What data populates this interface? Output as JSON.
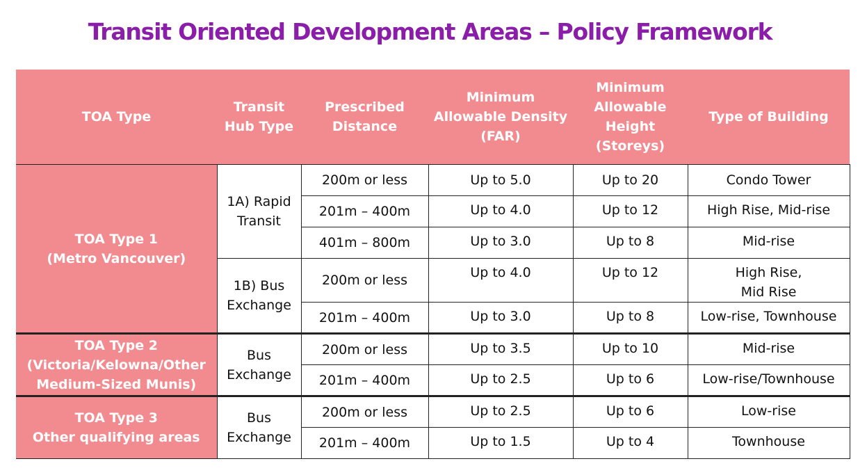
{
  "title": "Transit Oriented Development Areas – Policy Framework",
  "colors": {
    "title": "#8b1ea8",
    "header_bg": "#f28b8f",
    "header_text": "#ffffff"
  },
  "headers": {
    "toa_type": "TOA Type",
    "hub_type": [
      "Transit",
      "Hub Type"
    ],
    "distance": [
      "Prescribed",
      "Distance"
    ],
    "density": [
      "Minimum",
      "Allowable Density",
      "(FAR)"
    ],
    "height": [
      "Minimum",
      "Allowable",
      "Height",
      "(Storeys)"
    ],
    "building": "Type of Building"
  },
  "groups": [
    {
      "toa": [
        "TOA Type 1",
        "(Metro Vancouver)"
      ],
      "hubs": [
        {
          "name": [
            "1A) Rapid",
            "Transit"
          ],
          "rows": [
            {
              "distance": "200m or less",
              "density": "Up to 5.0",
              "height": "Up to 20",
              "building": [
                "Condo Tower"
              ]
            },
            {
              "distance": "201m – 400m",
              "density": "Up to 4.0",
              "height": "Up to 12",
              "building": [
                "High Rise, Mid-rise"
              ]
            },
            {
              "distance": "401m – 800m",
              "density": "Up to 3.0",
              "height": "Up to 8",
              "building": [
                "Mid-rise"
              ]
            }
          ]
        },
        {
          "name": [
            "1B) Bus",
            "Exchange"
          ],
          "rows": [
            {
              "distance": "200m or less",
              "density": "Up to 4.0",
              "height": "Up to 12",
              "building": [
                "High Rise,",
                "Mid Rise"
              ]
            },
            {
              "distance": "201m – 400m",
              "density": "Up to 3.0",
              "height": "Up to 8",
              "building": [
                "Low-rise, Townhouse"
              ]
            }
          ]
        }
      ]
    },
    {
      "toa": [
        "TOA Type 2",
        "(Victoria/Kelowna/Other",
        "Medium-Sized Munis)"
      ],
      "hubs": [
        {
          "name": [
            "Bus",
            "Exchange"
          ],
          "rows": [
            {
              "distance": "200m or less",
              "density": "Up to 3.5",
              "height": "Up to 10",
              "building": [
                "Mid-rise"
              ]
            },
            {
              "distance": "201m – 400m",
              "density": "Up to 2.5",
              "height": "Up to 6",
              "building": [
                "Low-rise/Townhouse"
              ]
            }
          ]
        }
      ]
    },
    {
      "toa": [
        "TOA Type 3",
        "Other qualifying areas"
      ],
      "hubs": [
        {
          "name": [
            "Bus",
            "Exchange"
          ],
          "rows": [
            {
              "distance": "200m or less",
              "density": "Up to 2.5",
              "height": "Up to 6",
              "building": [
                "Low-rise"
              ]
            },
            {
              "distance": "201m – 400m",
              "density": "Up to 1.5",
              "height": "Up to 4",
              "building": [
                "Townhouse"
              ]
            }
          ]
        }
      ]
    }
  ]
}
